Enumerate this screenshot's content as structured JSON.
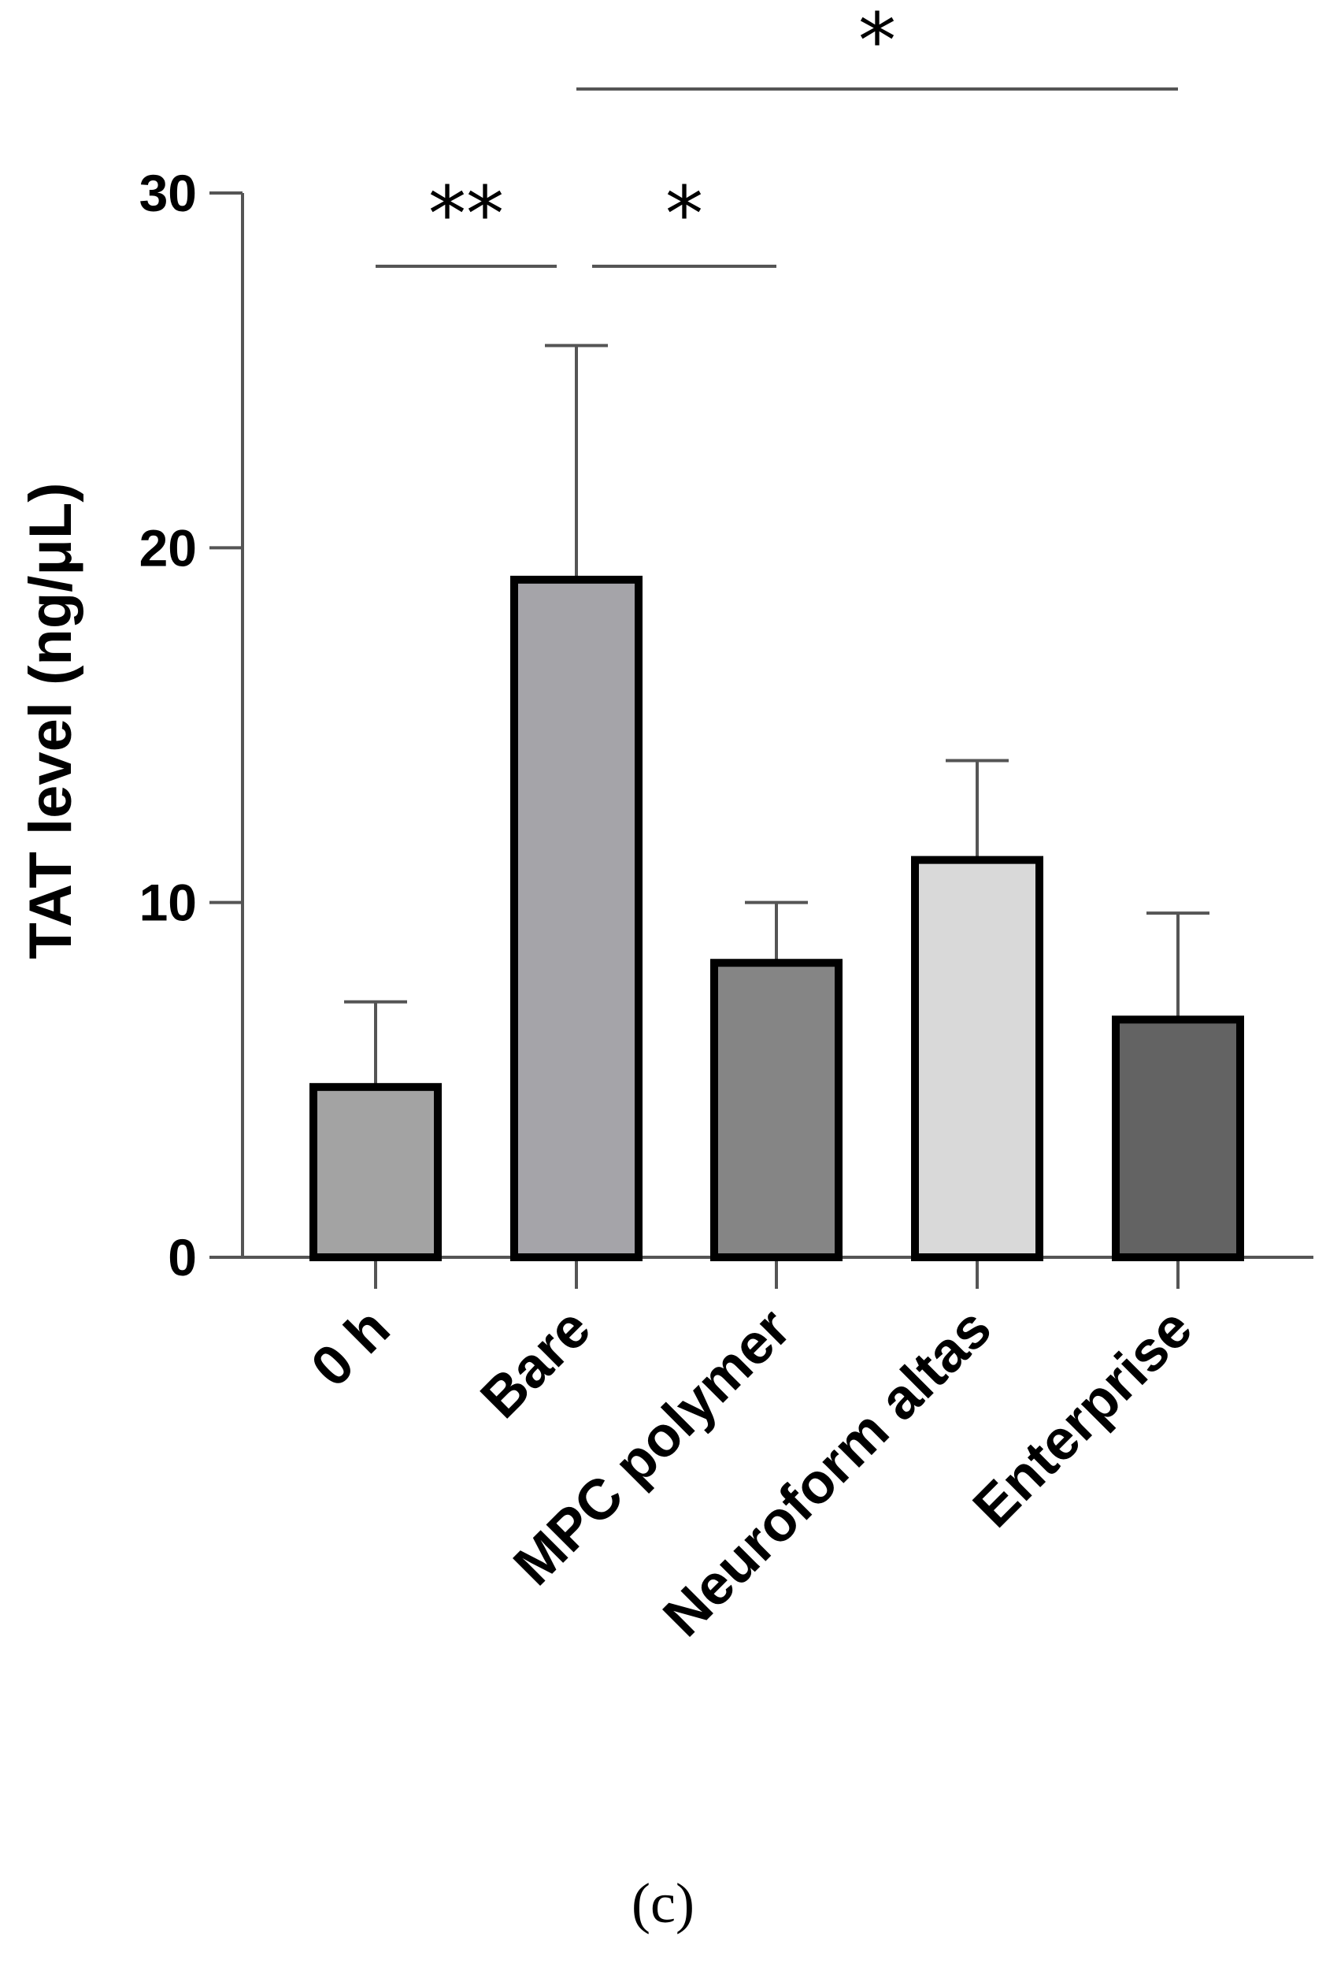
{
  "chart_data": {
    "type": "bar",
    "title": "",
    "xlabel": "",
    "ylabel": "TAT level (ng/μL)",
    "ylim": [
      0,
      30
    ],
    "yticks": [
      0,
      10,
      20,
      30
    ],
    "grid": false,
    "categories": [
      "0 h",
      "Bare",
      "MPC polymer",
      "Neuroform altas",
      "Enterprise"
    ],
    "values": [
      4.8,
      19.1,
      8.3,
      11.2,
      6.7
    ],
    "errors": [
      2.4,
      6.6,
      1.7,
      2.8,
      3.0
    ],
    "bar_colors": [
      "#a3a3a3",
      "#a5a4a9",
      "#858585",
      "#d9d9d9",
      "#636363"
    ],
    "significance": [
      {
        "from": 0,
        "to": 1,
        "label": "**"
      },
      {
        "from": 1,
        "to": 2,
        "label": "*"
      },
      {
        "from": 1,
        "to": 4,
        "label": "*"
      }
    ]
  },
  "panel_label": "(c)"
}
